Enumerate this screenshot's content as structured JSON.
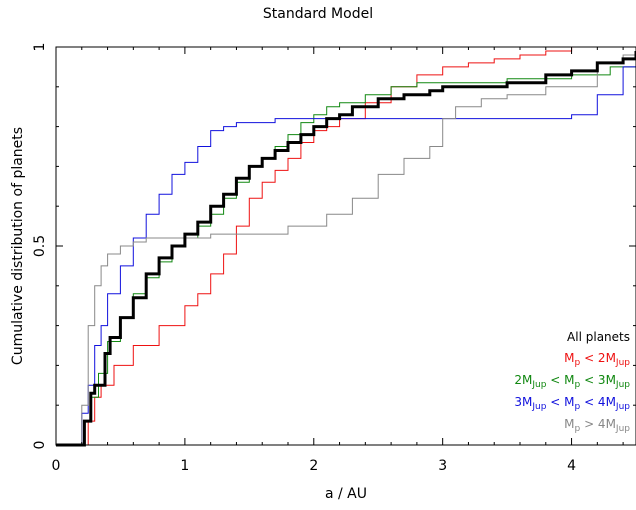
{
  "chart_data": {
    "type": "line",
    "title": "Standard Model",
    "xlabel": "a / AU",
    "ylabel": "Cumulative distribution of planets",
    "xlim": [
      0,
      4.5
    ],
    "ylim": [
      0,
      1
    ],
    "x_ticks": [
      {
        "value": 0,
        "label": "0"
      },
      {
        "value": 1,
        "label": "1"
      },
      {
        "value": 2,
        "label": "2"
      },
      {
        "value": 3,
        "label": "3"
      },
      {
        "value": 4,
        "label": "4"
      }
    ],
    "y_ticks": [
      {
        "value": 0,
        "label": "0"
      },
      {
        "value": 0.5,
        "label": "0.5"
      },
      {
        "value": 1,
        "label": "1"
      }
    ],
    "grid": false,
    "legend_position": "bottom-right",
    "series": [
      {
        "name": "All planets",
        "color": "#000000",
        "x": [
          0.0,
          0.17,
          0.22,
          0.27,
          0.3,
          0.35,
          0.38,
          0.42,
          0.5,
          0.6,
          0.7,
          0.8,
          0.9,
          1.0,
          1.1,
          1.2,
          1.3,
          1.4,
          1.5,
          1.6,
          1.7,
          1.8,
          1.9,
          2.0,
          2.1,
          2.2,
          2.3,
          2.5,
          2.7,
          2.9,
          3.0,
          3.2,
          3.5,
          3.8,
          4.0,
          4.2,
          4.4,
          4.5
        ],
        "y": [
          0.0,
          0.0,
          0.06,
          0.13,
          0.15,
          0.15,
          0.23,
          0.27,
          0.32,
          0.37,
          0.43,
          0.47,
          0.5,
          0.53,
          0.56,
          0.6,
          0.63,
          0.67,
          0.7,
          0.72,
          0.74,
          0.76,
          0.78,
          0.8,
          0.82,
          0.83,
          0.85,
          0.87,
          0.88,
          0.89,
          0.9,
          0.9,
          0.91,
          0.93,
          0.94,
          0.96,
          0.97,
          0.99
        ]
      },
      {
        "name": "M_p < 2M_Jup",
        "color": "#ee1111",
        "x": [
          0.0,
          0.2,
          0.25,
          0.3,
          0.35,
          0.45,
          0.6,
          0.8,
          1.0,
          1.1,
          1.2,
          1.3,
          1.4,
          1.5,
          1.6,
          1.7,
          1.8,
          1.9,
          2.0,
          2.1,
          2.2,
          2.4,
          2.6,
          2.8,
          3.0,
          3.2,
          3.4,
          3.6,
          3.8,
          4.0,
          4.2,
          4.5
        ],
        "y": [
          0.0,
          0.0,
          0.06,
          0.12,
          0.15,
          0.2,
          0.25,
          0.3,
          0.35,
          0.38,
          0.43,
          0.48,
          0.55,
          0.62,
          0.66,
          0.69,
          0.72,
          0.76,
          0.79,
          0.8,
          0.82,
          0.86,
          0.9,
          0.93,
          0.95,
          0.96,
          0.97,
          0.98,
          0.99,
          1.0,
          1.0,
          1.0
        ]
      },
      {
        "name": "2M_Jup < M_p < 3M_Jup",
        "color": "#118811",
        "x": [
          0.0,
          0.18,
          0.22,
          0.27,
          0.33,
          0.4,
          0.5,
          0.6,
          0.7,
          0.8,
          0.9,
          1.0,
          1.1,
          1.2,
          1.3,
          1.4,
          1.5,
          1.6,
          1.7,
          1.8,
          1.9,
          2.0,
          2.1,
          2.2,
          2.4,
          2.6,
          2.8,
          3.0,
          3.5,
          4.0,
          4.3,
          4.5
        ],
        "y": [
          0.0,
          0.0,
          0.06,
          0.12,
          0.18,
          0.26,
          0.32,
          0.38,
          0.42,
          0.46,
          0.5,
          0.52,
          0.55,
          0.58,
          0.62,
          0.66,
          0.7,
          0.72,
          0.75,
          0.78,
          0.81,
          0.83,
          0.85,
          0.86,
          0.88,
          0.9,
          0.91,
          0.91,
          0.92,
          0.93,
          0.95,
          1.0
        ]
      },
      {
        "name": "3M_Jup < M_p < 4M_Jup",
        "color": "#1111dd",
        "x": [
          0.0,
          0.17,
          0.2,
          0.25,
          0.3,
          0.35,
          0.4,
          0.5,
          0.6,
          0.7,
          0.8,
          0.9,
          1.0,
          1.1,
          1.2,
          1.3,
          1.4,
          1.5,
          1.7,
          2.0,
          2.5,
          3.0,
          3.5,
          4.0,
          4.2,
          4.4,
          4.5
        ],
        "y": [
          0.0,
          0.0,
          0.08,
          0.15,
          0.25,
          0.3,
          0.38,
          0.45,
          0.52,
          0.58,
          0.63,
          0.68,
          0.71,
          0.75,
          0.79,
          0.8,
          0.81,
          0.81,
          0.82,
          0.82,
          0.82,
          0.82,
          0.82,
          0.83,
          0.88,
          0.95,
          0.98
        ]
      },
      {
        "name": "M_p > 4M_Jup",
        "color": "#888888",
        "x": [
          0.0,
          0.17,
          0.2,
          0.25,
          0.3,
          0.35,
          0.4,
          0.5,
          0.6,
          0.7,
          1.0,
          1.2,
          1.5,
          1.8,
          2.1,
          2.3,
          2.5,
          2.7,
          2.9,
          3.0,
          3.1,
          3.3,
          3.5,
          3.8,
          4.2,
          4.4,
          4.5
        ],
        "y": [
          0.0,
          0.0,
          0.1,
          0.3,
          0.4,
          0.45,
          0.48,
          0.5,
          0.51,
          0.52,
          0.52,
          0.53,
          0.53,
          0.55,
          0.58,
          0.62,
          0.68,
          0.72,
          0.75,
          0.82,
          0.85,
          0.87,
          0.88,
          0.9,
          0.96,
          0.98,
          1.0
        ]
      }
    ]
  },
  "legend": [
    {
      "color": "#000000",
      "segments": [
        {
          "t": "All planets",
          "sub": false
        }
      ]
    },
    {
      "color": "#ee1111",
      "segments": [
        {
          "t": "M",
          "sub": false
        },
        {
          "t": "p",
          "sub": true
        },
        {
          "t": " < 2M",
          "sub": false
        },
        {
          "t": "Jup",
          "sub": true
        }
      ]
    },
    {
      "color": "#118811",
      "segments": [
        {
          "t": "2M",
          "sub": false
        },
        {
          "t": "Jup",
          "sub": true
        },
        {
          "t": " < M",
          "sub": false
        },
        {
          "t": "p",
          "sub": true
        },
        {
          "t": " < 3M",
          "sub": false
        },
        {
          "t": "Jup",
          "sub": true
        }
      ]
    },
    {
      "color": "#1111dd",
      "segments": [
        {
          "t": "3M",
          "sub": false
        },
        {
          "t": "Jup",
          "sub": true
        },
        {
          "t": " < M",
          "sub": false
        },
        {
          "t": "p",
          "sub": true
        },
        {
          "t": " < 4M",
          "sub": false
        },
        {
          "t": "Jup",
          "sub": true
        }
      ]
    },
    {
      "color": "#888888",
      "segments": [
        {
          "t": "M",
          "sub": false
        },
        {
          "t": "p",
          "sub": true
        },
        {
          "t": " > 4M",
          "sub": false
        },
        {
          "t": "Jup",
          "sub": true
        }
      ]
    }
  ]
}
